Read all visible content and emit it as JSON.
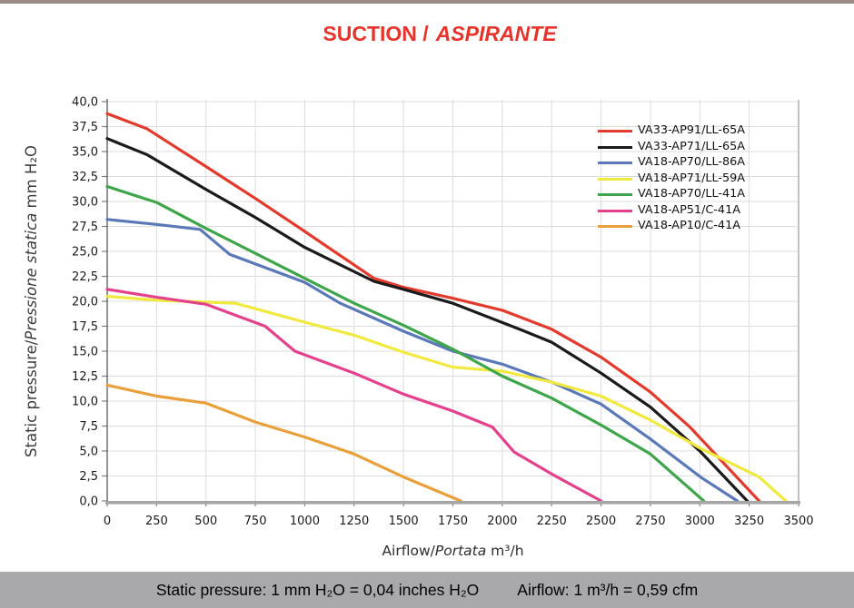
{
  "page": {
    "title": {
      "part1": "SUCTION /",
      "part2": "ASPIRANTE"
    },
    "title_color": "#e6332c",
    "top_bar_color": "#9d8b86",
    "footer": {
      "bg_color": "#a9a9ad",
      "item1": "Static pressure: 1 mm H₂O = 0,04 inches H₂O",
      "item2": "Airflow: 1 m³/h = 0,59 cfm"
    }
  },
  "chart_data": {
    "type": "line",
    "title": "SUCTION / ASPIRANTE",
    "x_axis": {
      "title_prefix": "Airflow/",
      "title_italic": "Portata",
      "title_suffix": " m³/h",
      "min": 0,
      "max": 3500,
      "tick_step": 250,
      "tick_labels": [
        "0",
        "250",
        "500",
        "750",
        "1000",
        "1250",
        "1500",
        "1750",
        "2000",
        "2250",
        "2500",
        "2750",
        "3000",
        "3250",
        "3500"
      ]
    },
    "y_axis": {
      "title_prefix": "Static pressure/",
      "title_italic": "Pressione statica",
      "title_suffix": " mm H₂O",
      "min": 0,
      "max": 40,
      "tick_step": 2.5,
      "tick_labels": [
        "0,0",
        "2,5",
        "5,0",
        "7,5",
        "10,0",
        "12,5",
        "15,0",
        "17,5",
        "20,0",
        "22,5",
        "25,0",
        "27,5",
        "30,0",
        "32,5",
        "35,0",
        "37,5",
        "40,0"
      ]
    },
    "grid": true,
    "grid_color": "#dcdcdc",
    "axis_color": "#a6a6a6",
    "y_axis_line_color": "#595959",
    "tick_color": "#7f7f7f",
    "legend_position": "top-right-inside",
    "series": [
      {
        "name": "VA33-AP91/LL-65A",
        "color": "#e23b2d",
        "points": [
          [
            0,
            38.8
          ],
          [
            200,
            37.3
          ],
          [
            500,
            33.5
          ],
          [
            750,
            30.3
          ],
          [
            1000,
            27.0
          ],
          [
            1350,
            22.3
          ],
          [
            1500,
            21.4
          ],
          [
            1750,
            20.3
          ],
          [
            2000,
            19.1
          ],
          [
            2250,
            17.2
          ],
          [
            2500,
            14.4
          ],
          [
            2750,
            10.9
          ],
          [
            2950,
            7.4
          ],
          [
            3300,
            0
          ]
        ]
      },
      {
        "name": "VA33-AP71/LL-65A",
        "color": "#1a1a1a",
        "points": [
          [
            0,
            36.3
          ],
          [
            200,
            34.7
          ],
          [
            500,
            31.2
          ],
          [
            750,
            28.4
          ],
          [
            1000,
            25.4
          ],
          [
            1350,
            22.0
          ],
          [
            1500,
            21.2
          ],
          [
            1750,
            19.8
          ],
          [
            2100,
            17.1
          ],
          [
            2250,
            15.9
          ],
          [
            2500,
            12.8
          ],
          [
            2750,
            9.4
          ],
          [
            3000,
            5.0
          ],
          [
            3240,
            0
          ]
        ]
      },
      {
        "name": "VA18-AP70/LL-86A",
        "color": "#5b79b8",
        "points": [
          [
            0,
            28.2
          ],
          [
            250,
            27.7
          ],
          [
            470,
            27.2
          ],
          [
            620,
            24.7
          ],
          [
            1000,
            21.9
          ],
          [
            1180,
            19.8
          ],
          [
            1500,
            17.0
          ],
          [
            1750,
            15.0
          ],
          [
            2000,
            13.7
          ],
          [
            2250,
            11.9
          ],
          [
            2500,
            9.7
          ],
          [
            2750,
            6.2
          ],
          [
            3010,
            2.3
          ],
          [
            3190,
            0
          ]
        ]
      },
      {
        "name": "VA18-AP71/LL-59A",
        "color": "#f0e93f",
        "points": [
          [
            0,
            20.5
          ],
          [
            250,
            20.1
          ],
          [
            650,
            19.8
          ],
          [
            1000,
            17.9
          ],
          [
            1250,
            16.6
          ],
          [
            1500,
            14.9
          ],
          [
            1750,
            13.4
          ],
          [
            2000,
            13.0
          ],
          [
            2250,
            11.9
          ],
          [
            2500,
            10.5
          ],
          [
            2750,
            8.1
          ],
          [
            3000,
            5.3
          ],
          [
            3300,
            2.4
          ],
          [
            3435,
            0
          ]
        ]
      },
      {
        "name": "VA18-AP70/LL-41A",
        "color": "#3fa54b",
        "points": [
          [
            0,
            31.5
          ],
          [
            250,
            29.9
          ],
          [
            500,
            27.3
          ],
          [
            750,
            24.8
          ],
          [
            1000,
            22.3
          ],
          [
            1250,
            19.8
          ],
          [
            1500,
            17.6
          ],
          [
            1750,
            15.2
          ],
          [
            2000,
            12.5
          ],
          [
            2250,
            10.3
          ],
          [
            2500,
            7.6
          ],
          [
            2750,
            4.7
          ],
          [
            3020,
            0
          ]
        ]
      },
      {
        "name": "VA18-AP51/C-41A",
        "color": "#e4418d",
        "points": [
          [
            0,
            21.2
          ],
          [
            250,
            20.4
          ],
          [
            500,
            19.7
          ],
          [
            800,
            17.5
          ],
          [
            950,
            15.0
          ],
          [
            1250,
            12.8
          ],
          [
            1500,
            10.7
          ],
          [
            1750,
            9.0
          ],
          [
            1950,
            7.4
          ],
          [
            2060,
            4.9
          ],
          [
            2250,
            2.7
          ],
          [
            2500,
            0
          ]
        ]
      },
      {
        "name": "VA18-AP10/C-41A",
        "color": "#e9a03a",
        "points": [
          [
            0,
            11.6
          ],
          [
            250,
            10.5
          ],
          [
            500,
            9.8
          ],
          [
            750,
            7.9
          ],
          [
            1000,
            6.4
          ],
          [
            1250,
            4.7
          ],
          [
            1500,
            2.4
          ],
          [
            1790,
            0
          ]
        ]
      }
    ]
  }
}
